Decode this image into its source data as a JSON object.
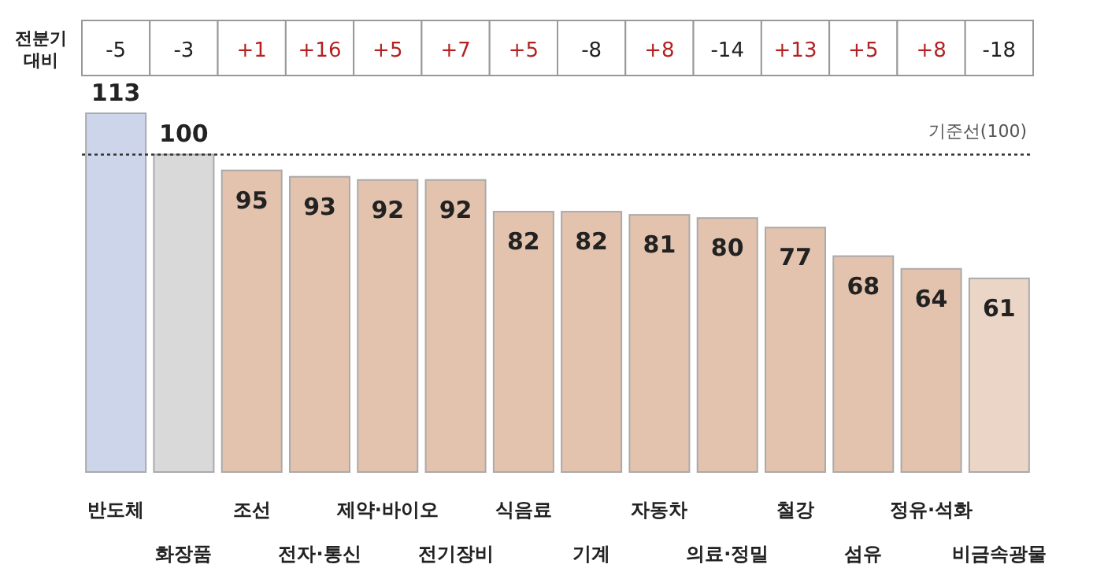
{
  "chart_data": {
    "type": "bar",
    "categories": [
      "반도체",
      "화장품",
      "조선",
      "전자·통신",
      "제약·바이오",
      "전기장비",
      "식음료",
      "기계",
      "자동차",
      "의료·정밀",
      "철강",
      "섬유",
      "정유·석화",
      "비금속광물"
    ],
    "values": [
      113,
      100,
      95,
      93,
      92,
      92,
      82,
      82,
      81,
      80,
      77,
      68,
      64,
      61
    ],
    "colors": [
      "#ccd5ea",
      "#d9d9d9",
      "#e3c3ae",
      "#e3c3ae",
      "#e3c3ae",
      "#e3c3ae",
      "#e3c3ae",
      "#e3c3ae",
      "#e3c3ae",
      "#e3c3ae",
      "#e3c3ae",
      "#e3c3ae",
      "#e3c3ae",
      "#ebd5c6"
    ],
    "data_labels": true,
    "ref_lines": [
      {
        "axis": "y",
        "value": 100,
        "label": "기준선(100)",
        "line_style": "dotted",
        "color": "#333333"
      }
    ],
    "annotations": [
      "전분기 대비",
      "-5",
      "-3",
      "+1",
      "+16",
      "+5",
      "+7",
      "+5",
      "-8",
      "+8",
      "-14",
      "+13",
      "+5",
      "+8",
      "-18"
    ]
  }
}
